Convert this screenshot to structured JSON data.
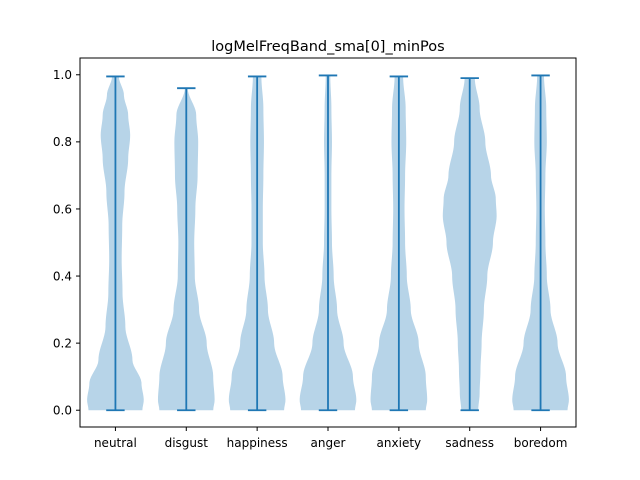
{
  "chart_data": {
    "type": "violin",
    "title": "logMelFreqBand_sma[0]_minPos",
    "xlabel": "",
    "ylabel": "",
    "ylim": [
      -0.05,
      1.05
    ],
    "yticks": [
      0.0,
      0.2,
      0.4,
      0.6,
      0.8,
      1.0
    ],
    "ytick_labels": [
      "0.0",
      "0.2",
      "0.4",
      "0.6",
      "0.8",
      "1.0"
    ],
    "categories": [
      "neutral",
      "disgust",
      "happiness",
      "anger",
      "anxiety",
      "sadness",
      "boredom"
    ],
    "grid": false,
    "colors": {
      "body": "#b7d4e8",
      "line": "#1f77b4",
      "axis": "#000000"
    },
    "series": [
      {
        "category": "neutral",
        "min": 0.0,
        "max": 0.995,
        "profile": [
          [
            0.0,
            0.95
          ],
          [
            0.03,
            1.0
          ],
          [
            0.08,
            0.92
          ],
          [
            0.15,
            0.6
          ],
          [
            0.25,
            0.35
          ],
          [
            0.35,
            0.25
          ],
          [
            0.45,
            0.22
          ],
          [
            0.55,
            0.24
          ],
          [
            0.65,
            0.32
          ],
          [
            0.75,
            0.45
          ],
          [
            0.82,
            0.52
          ],
          [
            0.88,
            0.45
          ],
          [
            0.94,
            0.3
          ],
          [
            0.995,
            0.12
          ]
        ]
      },
      {
        "category": "disgust",
        "min": 0.0,
        "max": 0.96,
        "profile": [
          [
            0.0,
            0.95
          ],
          [
            0.03,
            1.0
          ],
          [
            0.1,
            0.95
          ],
          [
            0.2,
            0.72
          ],
          [
            0.3,
            0.45
          ],
          [
            0.4,
            0.3
          ],
          [
            0.5,
            0.28
          ],
          [
            0.6,
            0.32
          ],
          [
            0.7,
            0.4
          ],
          [
            0.8,
            0.42
          ],
          [
            0.88,
            0.35
          ],
          [
            0.96,
            0.05
          ]
        ]
      },
      {
        "category": "happiness",
        "min": 0.0,
        "max": 0.995,
        "profile": [
          [
            0.0,
            0.95
          ],
          [
            0.03,
            1.0
          ],
          [
            0.1,
            0.9
          ],
          [
            0.2,
            0.6
          ],
          [
            0.3,
            0.38
          ],
          [
            0.4,
            0.26
          ],
          [
            0.5,
            0.2
          ],
          [
            0.6,
            0.2
          ],
          [
            0.7,
            0.22
          ],
          [
            0.8,
            0.24
          ],
          [
            0.9,
            0.22
          ],
          [
            0.995,
            0.15
          ]
        ]
      },
      {
        "category": "anger",
        "min": 0.0,
        "max": 0.998,
        "profile": [
          [
            0.0,
            0.95
          ],
          [
            0.03,
            1.0
          ],
          [
            0.1,
            0.88
          ],
          [
            0.2,
            0.55
          ],
          [
            0.3,
            0.32
          ],
          [
            0.4,
            0.2
          ],
          [
            0.5,
            0.14
          ],
          [
            0.6,
            0.12
          ],
          [
            0.7,
            0.12
          ],
          [
            0.8,
            0.14
          ],
          [
            0.9,
            0.12
          ],
          [
            0.998,
            0.08
          ]
        ]
      },
      {
        "category": "anxiety",
        "min": 0.0,
        "max": 0.995,
        "profile": [
          [
            0.0,
            0.95
          ],
          [
            0.03,
            1.0
          ],
          [
            0.1,
            0.95
          ],
          [
            0.2,
            0.7
          ],
          [
            0.3,
            0.42
          ],
          [
            0.4,
            0.28
          ],
          [
            0.5,
            0.22
          ],
          [
            0.6,
            0.2
          ],
          [
            0.7,
            0.22
          ],
          [
            0.8,
            0.26
          ],
          [
            0.9,
            0.24
          ],
          [
            0.995,
            0.15
          ]
        ]
      },
      {
        "category": "sadness",
        "min": 0.0,
        "max": 0.99,
        "profile": [
          [
            0.0,
            0.3
          ],
          [
            0.05,
            0.35
          ],
          [
            0.12,
            0.38
          ],
          [
            0.2,
            0.42
          ],
          [
            0.3,
            0.5
          ],
          [
            0.4,
            0.62
          ],
          [
            0.5,
            0.82
          ],
          [
            0.58,
            0.95
          ],
          [
            0.63,
            0.92
          ],
          [
            0.7,
            0.75
          ],
          [
            0.8,
            0.55
          ],
          [
            0.9,
            0.35
          ],
          [
            0.99,
            0.18
          ]
        ]
      },
      {
        "category": "boredom",
        "min": 0.0,
        "max": 0.998,
        "profile": [
          [
            0.0,
            0.95
          ],
          [
            0.03,
            1.0
          ],
          [
            0.1,
            0.9
          ],
          [
            0.2,
            0.6
          ],
          [
            0.3,
            0.35
          ],
          [
            0.4,
            0.22
          ],
          [
            0.5,
            0.17
          ],
          [
            0.6,
            0.15
          ],
          [
            0.7,
            0.17
          ],
          [
            0.8,
            0.22
          ],
          [
            0.9,
            0.2
          ],
          [
            0.998,
            0.12
          ]
        ]
      }
    ]
  }
}
